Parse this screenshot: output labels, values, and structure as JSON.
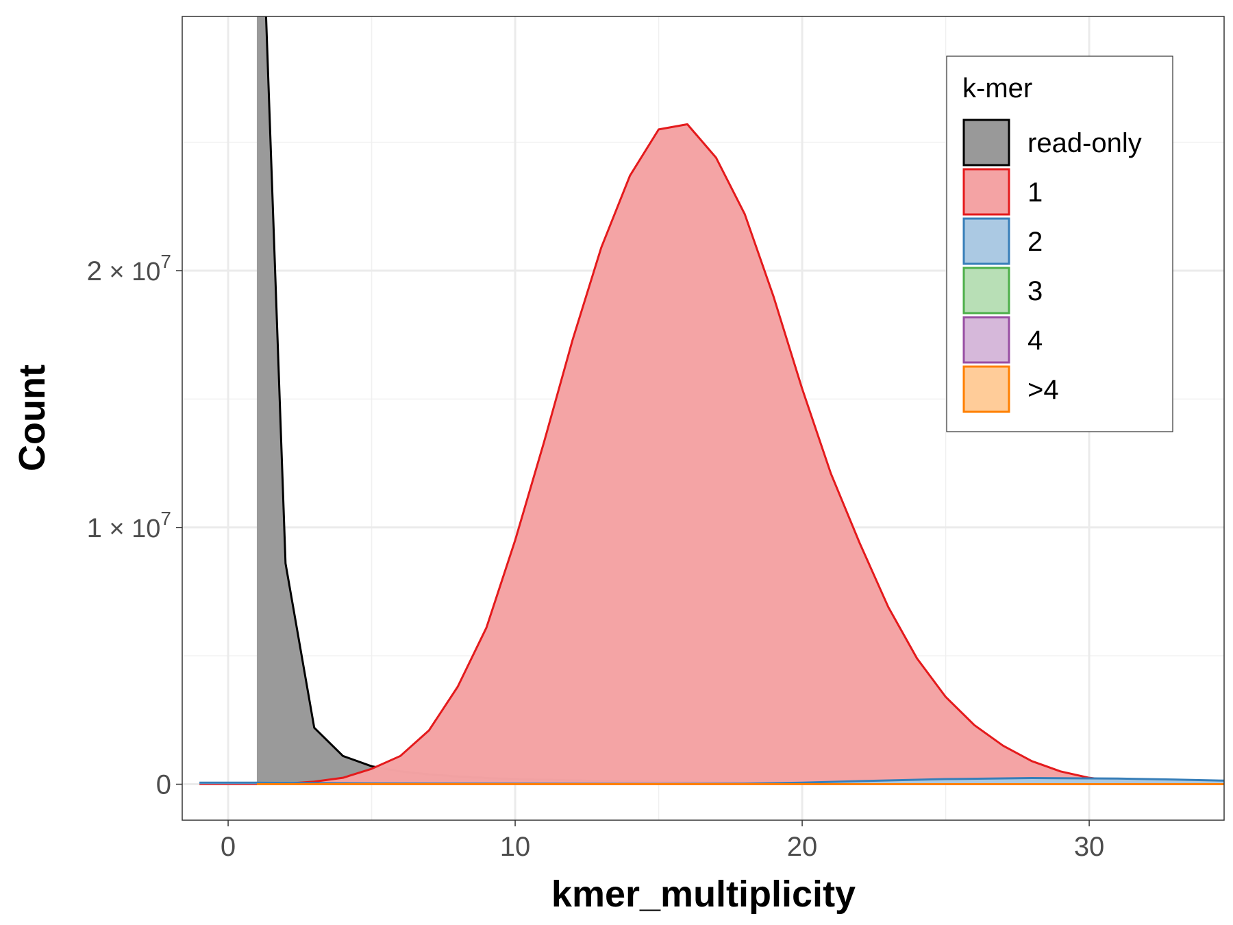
{
  "chart_data": {
    "type": "area",
    "xlabel": "kmer_multiplicity",
    "ylabel": "Count",
    "xlim": [
      -1.6,
      34.7
    ],
    "ylim": [
      -1400000,
      29900000
    ],
    "x_ticks": [
      0,
      10,
      20,
      30
    ],
    "x_tick_labels": [
      "0",
      "10",
      "20",
      "30"
    ],
    "y_ticks": [
      0,
      10000000,
      20000000
    ],
    "y_tick_labels": [
      {
        "mantissa": "0",
        "exp": ""
      },
      {
        "mantissa": "1",
        "exp": "7"
      },
      {
        "mantissa": "2",
        "exp": "7"
      }
    ],
    "grid": true,
    "legend": {
      "title": "k-mer",
      "position": "top-right"
    },
    "series": [
      {
        "name": "read-only",
        "color": "#000000",
        "fill": "#999999",
        "x": [
          1,
          2,
          3,
          4,
          5,
          6,
          7,
          8,
          9,
          10,
          12,
          14,
          16,
          18,
          20,
          22,
          25,
          28,
          31,
          34.7
        ],
        "values": [
          40000000,
          8600000,
          2200000,
          1100000,
          700000,
          500000,
          380000,
          300000,
          240000,
          200000,
          150000,
          110000,
          80000,
          60000,
          40000,
          30000,
          20000,
          10000,
          5000,
          0
        ]
      },
      {
        "name": "1",
        "color": "#e41a1c",
        "fill": "#f4a3a4",
        "x": [
          -1,
          1,
          2,
          3,
          4,
          5,
          6,
          7,
          8,
          9,
          10,
          11,
          12,
          13,
          14,
          15,
          16,
          17,
          18,
          19,
          20,
          21,
          22,
          23,
          24,
          25,
          26,
          27,
          28,
          29,
          30,
          31,
          32,
          33,
          34.7
        ],
        "values": [
          0,
          0,
          20000,
          100000,
          250000,
          600000,
          1100000,
          2100000,
          3800000,
          6100000,
          9500000,
          13300000,
          17300000,
          20900000,
          23700000,
          25500000,
          25700000,
          24400000,
          22200000,
          19000000,
          15400000,
          12100000,
          9400000,
          6900000,
          4900000,
          3400000,
          2300000,
          1500000,
          900000,
          500000,
          250000,
          120000,
          50000,
          20000,
          0
        ]
      },
      {
        "name": "2",
        "color": "#377eb8",
        "fill": "#abc9e3",
        "x": [
          -1,
          1,
          5,
          10,
          15,
          18,
          20,
          22,
          25,
          28,
          31,
          33,
          34.7
        ],
        "values": [
          60000,
          60000,
          30000,
          20000,
          10000,
          20000,
          60000,
          120000,
          200000,
          240000,
          220000,
          180000,
          140000
        ]
      },
      {
        "name": "3",
        "color": "#4daf4a",
        "fill": "#b8dfb6",
        "x": [
          1,
          34.7
        ],
        "values": [
          0,
          0
        ]
      },
      {
        "name": "4",
        "color": "#984ea3",
        "fill": "#d6b8da",
        "x": [
          1,
          34.7
        ],
        "values": [
          0,
          0
        ]
      },
      {
        "name": ">4",
        "color": "#ff7f00",
        "fill": "#ffcc99",
        "x": [
          1,
          34.7
        ],
        "values": [
          0,
          0
        ]
      }
    ]
  }
}
